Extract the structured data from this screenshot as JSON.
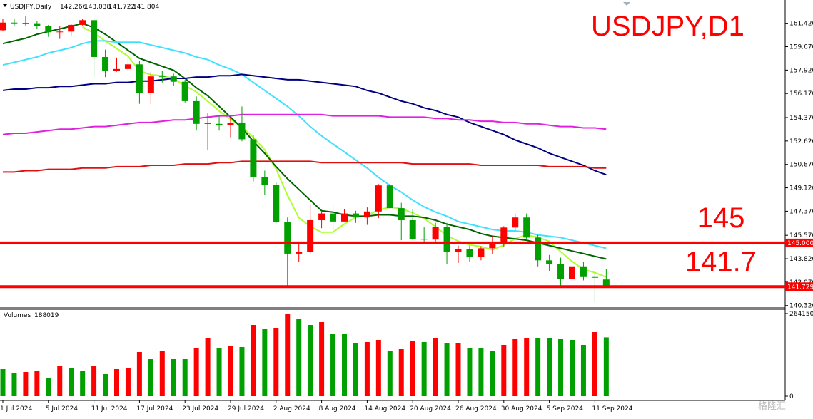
{
  "watermark": "格隆汇",
  "chart_data": [
    {
      "type": "candlestick",
      "title": "USDJPY,D1",
      "symbol_label": "USDJPY,Daily",
      "categories": [
        "1 Jul 2024",
        null,
        null,
        null,
        "5 Jul 2024",
        null,
        null,
        null,
        "11 Jul 2024",
        null,
        null,
        null,
        "17 Jul 2024",
        null,
        null,
        null,
        "23 Jul 2024",
        null,
        null,
        null,
        "29 Jul 2024",
        null,
        null,
        null,
        "2 Aug 2024",
        null,
        null,
        null,
        "8 Aug 2024",
        null,
        null,
        null,
        "14 Aug 2024",
        null,
        null,
        null,
        "20 Aug 2024",
        null,
        null,
        null,
        "26 Aug 2024",
        null,
        null,
        null,
        "30 Aug 2024",
        null,
        null,
        null,
        "5 Sep 2024",
        null,
        null,
        null,
        "11 Sep 2024",
        null
      ],
      "open": [
        160.9,
        161.47,
        161.45,
        161.42,
        161.2,
        160.75,
        160.8,
        161.3,
        161.65,
        158.9,
        157.85,
        158.0,
        158.35,
        156.2,
        157.45,
        157.45,
        157.05,
        155.6,
        153.9,
        153.9,
        153.8,
        154.0,
        152.75,
        149.95,
        149.35,
        146.55,
        144.2,
        144.35,
        146.7,
        147.2,
        146.6,
        147.2,
        146.9,
        147.35,
        149.3,
        147.6,
        146.7,
        145.3,
        145.25,
        146.2,
        144.35,
        144.55,
        143.95,
        144.6,
        144.95,
        146.15,
        146.9,
        145.4,
        143.7,
        143.45,
        142.3,
        143.25,
        142.45,
        142.266
      ],
      "high": [
        161.72,
        161.75,
        161.95,
        161.6,
        161.3,
        161.2,
        161.4,
        161.75,
        161.8,
        159.45,
        158.85,
        158.9,
        158.6,
        157.8,
        157.85,
        157.65,
        157.2,
        155.95,
        154.7,
        154.5,
        154.4,
        155.2,
        153.1,
        150.4,
        149.55,
        146.9,
        145.0,
        147.9,
        147.3,
        147.8,
        147.5,
        147.4,
        147.65,
        149.4,
        149.4,
        148.0,
        147.5,
        146.2,
        146.5,
        146.5,
        144.8,
        144.8,
        144.75,
        145.55,
        146.25,
        147.2,
        147.2,
        145.6,
        144.1,
        143.9,
        143.65,
        143.6,
        142.8,
        143.038
      ],
      "low": [
        160.83,
        161.25,
        161.25,
        161.0,
        160.4,
        160.25,
        160.5,
        161.25,
        157.4,
        157.4,
        157.8,
        157.85,
        155.4,
        155.4,
        157.0,
        156.75,
        155.5,
        153.4,
        151.95,
        153.4,
        152.9,
        152.6,
        149.6,
        148.6,
        146.5,
        141.7,
        143.6,
        144.2,
        146.1,
        145.95,
        146.6,
        146.5,
        146.35,
        146.85,
        147.5,
        145.2,
        145.2,
        144.95,
        145.0,
        143.45,
        143.5,
        143.6,
        143.7,
        144.15,
        144.7,
        145.95,
        145.2,
        143.25,
        142.9,
        141.75,
        142.1,
        142.2,
        140.6,
        141.722
      ],
      "close": [
        161.47,
        161.45,
        161.42,
        161.2,
        160.75,
        160.8,
        161.3,
        161.65,
        158.9,
        157.85,
        158.0,
        158.35,
        156.2,
        157.45,
        157.45,
        157.05,
        155.6,
        153.9,
        153.95,
        153.8,
        154.0,
        152.75,
        149.95,
        149.35,
        146.55,
        144.2,
        144.35,
        146.7,
        147.2,
        146.6,
        147.2,
        146.9,
        147.35,
        149.3,
        147.6,
        146.7,
        145.3,
        145.25,
        146.2,
        144.35,
        144.55,
        143.95,
        144.6,
        144.95,
        146.15,
        146.9,
        145.4,
        143.7,
        143.45,
        142.3,
        143.25,
        142.45,
        142.45,
        141.804
      ],
      "up_color": "#ff0000",
      "down_color": "#00a000",
      "lines": [
        {
          "color": "#adff2f",
          "values": [
            null,
            null,
            null,
            null,
            null,
            null,
            null,
            161.14,
            160.68,
            160.1,
            159.54,
            158.95,
            157.86,
            157.57,
            157.49,
            157.3,
            156.75,
            156.29,
            155.59,
            154.86,
            154.25,
            153.68,
            152.89,
            151.97,
            150.52,
            148.56,
            146.88,
            146.23,
            145.8,
            145.81,
            146.41,
            146.92,
            147.05,
            147.47,
            147.67,
            147.57,
            147.25,
            146.83,
            146.21,
            145.56,
            145.13,
            144.86,
            144.73,
            144.48,
            144.84,
            145.31,
            145.6,
            145.42,
            145.12,
            144.35,
            143.62,
            143.03,
            142.78,
            142.45
          ]
        },
        {
          "color": "#006400",
          "values": [
            159.9,
            160.1,
            160.3,
            160.6,
            160.8,
            161.0,
            161.2,
            161.4,
            161.1,
            160.6,
            160.0,
            159.4,
            158.8,
            158.5,
            158.2,
            157.9,
            157.3,
            156.6,
            156.0,
            155.2,
            154.4,
            153.6,
            152.6,
            151.7,
            150.7,
            149.8,
            149.0,
            148.2,
            147.4,
            147.3,
            147.1,
            147.0,
            147.0,
            147.1,
            147.1,
            147.0,
            147.0,
            146.9,
            146.7,
            146.4,
            146.2,
            146.0,
            145.7,
            145.5,
            145.4,
            145.3,
            145.2,
            145.0,
            144.8,
            144.6,
            144.4,
            144.2,
            144.0,
            143.8
          ]
        },
        {
          "color": "#40e0ff",
          "values": [
            158.3,
            158.5,
            158.7,
            158.9,
            159.2,
            159.4,
            159.6,
            159.9,
            160.1,
            160.1,
            160.0,
            160.0,
            160.0,
            159.8,
            159.6,
            159.4,
            159.2,
            158.9,
            158.7,
            158.3,
            158.0,
            157.6,
            157.0,
            156.4,
            155.8,
            155.2,
            154.5,
            153.7,
            153.0,
            152.4,
            151.8,
            151.2,
            150.6,
            149.9,
            149.3,
            148.8,
            148.2,
            147.7,
            147.3,
            147.0,
            146.6,
            146.4,
            146.2,
            146.0,
            145.9,
            145.9,
            145.8,
            145.6,
            145.5,
            145.4,
            145.2,
            145.0,
            144.8,
            144.6
          ]
        },
        {
          "color": "#000080",
          "values": [
            156.4,
            156.5,
            156.5,
            156.6,
            156.6,
            156.7,
            156.7,
            156.8,
            156.9,
            156.9,
            157.0,
            157.0,
            157.1,
            157.1,
            157.2,
            157.3,
            157.3,
            157.4,
            157.4,
            157.5,
            157.5,
            157.6,
            157.5,
            157.4,
            157.3,
            157.2,
            157.2,
            157.1,
            157.0,
            156.9,
            156.8,
            156.7,
            156.4,
            156.2,
            155.9,
            155.6,
            155.4,
            155.1,
            154.9,
            154.6,
            154.4,
            154.0,
            153.7,
            153.4,
            153.1,
            152.7,
            152.4,
            152.1,
            151.7,
            151.4,
            151.1,
            150.8,
            150.4,
            150.1
          ]
        },
        {
          "color": "#e020e0",
          "values": [
            153.1,
            153.2,
            153.2,
            153.3,
            153.4,
            153.5,
            153.5,
            153.6,
            153.7,
            153.7,
            153.8,
            153.9,
            154.0,
            154.0,
            154.1,
            154.2,
            154.2,
            154.3,
            154.4,
            154.5,
            154.5,
            154.6,
            154.6,
            154.6,
            154.6,
            154.6,
            154.6,
            154.6,
            154.6,
            154.5,
            154.5,
            154.5,
            154.5,
            154.5,
            154.4,
            154.4,
            154.4,
            154.4,
            154.3,
            154.3,
            154.2,
            154.2,
            154.1,
            154.1,
            154.0,
            154.0,
            153.9,
            153.9,
            153.8,
            153.7,
            153.7,
            153.6,
            153.6,
            153.5
          ]
        },
        {
          "color": "#e01010",
          "values": [
            150.3,
            150.3,
            150.4,
            150.4,
            150.5,
            150.5,
            150.5,
            150.6,
            150.6,
            150.6,
            150.7,
            150.7,
            150.7,
            150.8,
            150.8,
            150.8,
            150.9,
            150.9,
            150.9,
            151.0,
            151.0,
            151.1,
            151.1,
            151.1,
            151.1,
            151.1,
            151.1,
            151.1,
            151.0,
            151.0,
            151.0,
            151.0,
            151.0,
            151.0,
            151.0,
            151.0,
            150.9,
            150.9,
            150.9,
            150.9,
            150.9,
            150.9,
            150.8,
            150.8,
            150.8,
            150.8,
            150.8,
            150.8,
            150.7,
            150.7,
            150.7,
            150.7,
            150.6,
            150.6
          ]
        }
      ],
      "hlines": [
        {
          "value": 145,
          "label": "145.000",
          "note": "145",
          "color": "#ff0000"
        },
        {
          "value": 141.729,
          "label": "141.729",
          "note": "141.7",
          "color": "#ff0000"
        }
      ],
      "ylim": [
        140.2,
        163.0
      ],
      "yticks": [
        {
          "value": 161.42,
          "label": "161.420"
        },
        {
          "value": 159.67,
          "label": "159.670"
        },
        {
          "value": 157.92,
          "label": "157.920"
        },
        {
          "value": 156.17,
          "label": "156.170"
        },
        {
          "value": 154.37,
          "label": "154.370"
        },
        {
          "value": 152.62,
          "label": "152.620"
        },
        {
          "value": 150.87,
          "label": "150.870"
        },
        {
          "value": 149.12,
          "label": "149.120"
        },
        {
          "value": 147.37,
          "label": "147.370"
        },
        {
          "value": 145.57,
          "label": "145.570"
        },
        {
          "value": 143.82,
          "label": "143.820"
        },
        {
          "value": 142.07,
          "label": "142.070"
        },
        {
          "value": 140.32,
          "label": "140.320"
        }
      ]
    },
    {
      "type": "bar",
      "title": "Volumes",
      "values": [
        86500,
        72900,
        77400,
        82000,
        59200,
        97900,
        91100,
        82000,
        97900,
        70600,
        86500,
        88800,
        141200,
        118400,
        143500,
        118400,
        118400,
        152600,
        186700,
        154900,
        159400,
        157100,
        227700,
        216300,
        218600,
        261900,
        248200,
        227700,
        236800,
        198100,
        198100,
        168500,
        173100,
        179900,
        145700,
        150300,
        175300,
        173100,
        186700,
        168500,
        170800,
        154900,
        152600,
        145700,
        164000,
        182200,
        184500,
        184500,
        184500,
        182200,
        179900,
        164000,
        204900,
        188019
      ],
      "up_color": "#ff0000",
      "down_color": "#00a000",
      "ylim": [
        0,
        264150
      ],
      "yticks": [
        0,
        264150
      ]
    }
  ]
}
